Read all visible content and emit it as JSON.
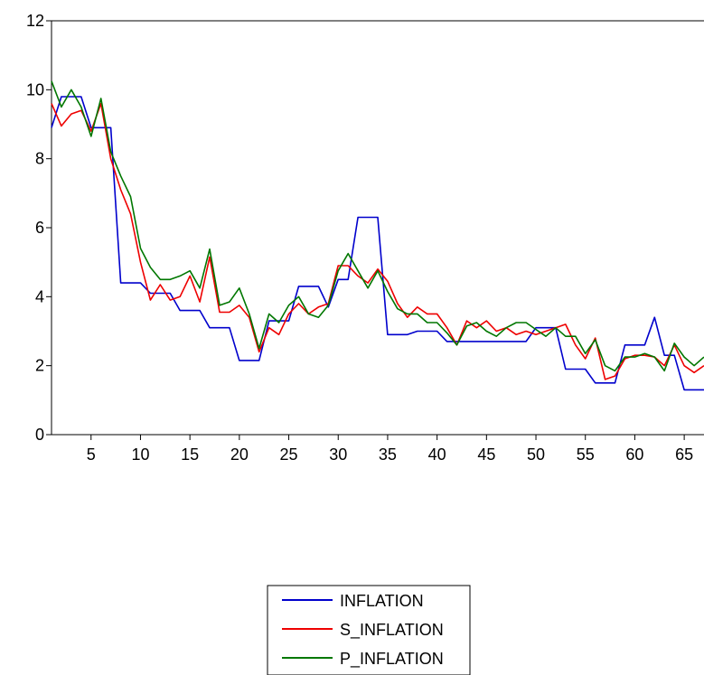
{
  "chart_data": {
    "type": "line",
    "title": "",
    "xlabel": "",
    "ylabel": "",
    "x_range": [
      1,
      67
    ],
    "ylim": [
      0,
      12
    ],
    "y_ticks": [
      0,
      2,
      4,
      6,
      8,
      10,
      12
    ],
    "x_ticks": [
      5,
      10,
      15,
      20,
      25,
      30,
      35,
      40,
      45,
      50,
      55,
      60,
      65
    ],
    "grid": false,
    "legend_placement": "bottom-center",
    "x": [
      1,
      2,
      3,
      4,
      5,
      6,
      7,
      8,
      9,
      10,
      11,
      12,
      13,
      14,
      15,
      16,
      17,
      18,
      19,
      20,
      21,
      22,
      23,
      24,
      25,
      26,
      27,
      28,
      29,
      30,
      31,
      32,
      33,
      34,
      35,
      36,
      37,
      38,
      39,
      40,
      41,
      42,
      43,
      44,
      45,
      46,
      47,
      48,
      49,
      50,
      51,
      52,
      53,
      54,
      55,
      56,
      57,
      58,
      59,
      60,
      61,
      62,
      63,
      64,
      65,
      66,
      67
    ],
    "series": [
      {
        "name": "INFLATION",
        "color": "#0000cc",
        "values": [
          8.9,
          9.8,
          9.8,
          9.8,
          8.9,
          8.9,
          8.9,
          4.4,
          4.4,
          4.4,
          4.1,
          4.1,
          4.1,
          3.6,
          3.6,
          3.6,
          3.1,
          3.1,
          3.1,
          2.15,
          2.15,
          2.15,
          3.3,
          3.3,
          3.3,
          4.3,
          4.3,
          4.3,
          3.7,
          4.5,
          4.5,
          6.3,
          6.3,
          6.3,
          2.9,
          2.9,
          2.9,
          3.0,
          3.0,
          3.0,
          2.7,
          2.7,
          2.7,
          2.7,
          2.7,
          2.7,
          2.7,
          2.7,
          2.7,
          3.1,
          3.1,
          3.1,
          1.9,
          1.9,
          1.9,
          1.5,
          1.5,
          1.5,
          2.6,
          2.6,
          2.6,
          3.4,
          2.3,
          2.3,
          1.3,
          1.3,
          1.3
        ]
      },
      {
        "name": "S_INFLATION",
        "color": "#ee0000",
        "values": [
          9.6,
          8.95,
          9.3,
          9.4,
          8.8,
          9.6,
          8.0,
          7.1,
          6.4,
          5.0,
          3.9,
          4.35,
          3.9,
          4.0,
          4.6,
          3.85,
          5.15,
          3.55,
          3.55,
          3.75,
          3.4,
          2.4,
          3.1,
          2.9,
          3.5,
          3.8,
          3.5,
          3.7,
          3.8,
          4.9,
          4.9,
          4.6,
          4.4,
          4.8,
          4.45,
          3.8,
          3.4,
          3.7,
          3.5,
          3.5,
          3.1,
          2.6,
          3.3,
          3.1,
          3.3,
          3.0,
          3.1,
          2.9,
          3.0,
          2.9,
          3.0,
          3.1,
          3.2,
          2.6,
          2.2,
          2.8,
          1.6,
          1.7,
          2.2,
          2.3,
          2.3,
          2.25,
          2.0,
          2.6,
          2.0,
          1.8,
          2.0
        ]
      },
      {
        "name": "P_INFLATION",
        "color": "#007700",
        "values": [
          10.25,
          9.5,
          10.0,
          9.5,
          8.65,
          9.75,
          8.2,
          7.5,
          6.9,
          5.4,
          4.85,
          4.5,
          4.5,
          4.6,
          4.75,
          4.25,
          5.38,
          3.75,
          3.85,
          4.25,
          3.5,
          2.5,
          3.5,
          3.25,
          3.75,
          4.0,
          3.5,
          3.4,
          3.75,
          4.75,
          5.25,
          4.75,
          4.25,
          4.75,
          4.15,
          3.65,
          3.5,
          3.5,
          3.25,
          3.25,
          2.95,
          2.6,
          3.15,
          3.25,
          3.0,
          2.85,
          3.1,
          3.25,
          3.25,
          3.05,
          2.85,
          3.1,
          2.85,
          2.85,
          2.35,
          2.75,
          2.0,
          1.85,
          2.25,
          2.25,
          2.35,
          2.25,
          1.85,
          2.65,
          2.25,
          2.0,
          2.25
        ]
      }
    ]
  }
}
